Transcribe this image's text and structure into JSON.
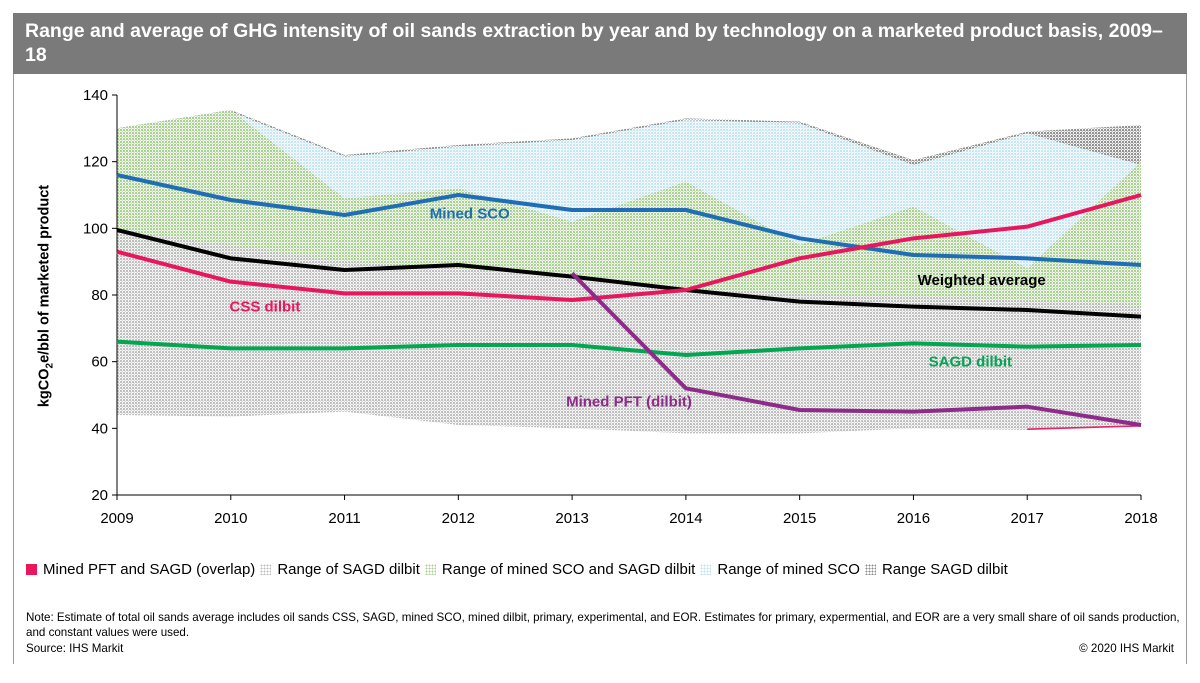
{
  "header": {
    "title": "Range and average of GHG intensity of oil sands extraction by year and by technology on a marketed product basis, 2009–18"
  },
  "colors": {
    "header_bg": "#7a7a7a",
    "mined_sco": "#1f6db5",
    "weighted_average": "#000000",
    "css_dilbit": "#e8175d",
    "sagd_dilbit": "#00a650",
    "mined_pft": "#8e2a8a",
    "range_sagd": "#bdbdbd",
    "range_mined_sco_sagd": "#a9d18e",
    "range_mined_sco": "#bfe3f0",
    "range_sagd_dark": "#8c8c8c",
    "overlap": "#e8175d"
  },
  "chart_data": {
    "type": "line",
    "x": [
      2009,
      2010,
      2011,
      2012,
      2013,
      2014,
      2015,
      2016,
      2017,
      2018
    ],
    "xlim": [
      2009,
      2018
    ],
    "ylim": [
      20,
      140
    ],
    "yticks": [
      20,
      40,
      60,
      80,
      100,
      120,
      140
    ],
    "ylabel_prefix": "kgCO",
    "ylabel_sub": "2",
    "ylabel_suffix": "e/bbl of marketed product",
    "grid": false,
    "series": [
      {
        "name": "Mined SCO",
        "color_key": "mined_sco",
        "values": [
          116,
          108.5,
          104,
          110,
          105.5,
          105.5,
          97,
          92,
          91,
          89
        ]
      },
      {
        "name": "Weighted average",
        "color_key": "weighted_average",
        "values": [
          99.5,
          91,
          87.5,
          89,
          85.5,
          81.5,
          78,
          76.5,
          75.5,
          73.5
        ]
      },
      {
        "name": "CSS dilbit",
        "color_key": "css_dilbit",
        "values": [
          93,
          84,
          80.5,
          80.5,
          78.5,
          81.5,
          91,
          97,
          100.5,
          110
        ]
      },
      {
        "name": "SAGD dilbit",
        "color_key": "sagd_dilbit",
        "values": [
          66,
          64,
          64,
          65,
          65,
          62,
          64,
          65.5,
          64.5,
          65
        ]
      },
      {
        "name": "Mined PFT (dilbit)",
        "color_key": "mined_pft",
        "values": [
          null,
          null,
          null,
          null,
          86.5,
          52,
          45.5,
          45,
          46.5,
          41
        ]
      }
    ],
    "ranges": [
      {
        "name": "Range of SAGD dilbit",
        "color_key": "range_sagd",
        "low": [
          44,
          43.5,
          45,
          41,
          40,
          38.5,
          38.5,
          40,
          39.5,
          41
        ],
        "high": [
          99.5,
          95,
          90,
          88,
          85,
          82,
          80.5,
          79.5,
          78.5,
          77
        ]
      },
      {
        "name": "Range of mined SCO and SAGD dilbit",
        "color_key": "range_mined_sco_sagd",
        "low": [
          93,
          90,
          87,
          88,
          85,
          80,
          78,
          77,
          76,
          74
        ],
        "high": [
          130,
          135.5,
          109,
          112,
          102,
          114,
          95,
          106.5,
          88,
          120
        ]
      },
      {
        "name": "Range of mined SCO",
        "color_key": "range_mined_sco",
        "low": [
          93,
          90,
          87,
          88,
          85,
          80,
          78,
          77,
          76,
          74
        ],
        "high": [
          130,
          135.5,
          122,
          125,
          127,
          133,
          132,
          119.5,
          129,
          119
        ]
      },
      {
        "name": "Range SAGD dilbit",
        "color_key": "range_sagd_dark",
        "low": [
          129.5,
          135,
          121.5,
          124.5,
          126.5,
          132.5,
          131.5,
          119,
          128.5,
          119
        ],
        "high": [
          130,
          135.5,
          122,
          125,
          127,
          133,
          132,
          120.5,
          129,
          131
        ]
      },
      {
        "name": "Mined PFT and SAGD (overlap)",
        "color_key": "overlap",
        "low": [
          null,
          null,
          null,
          null,
          null,
          null,
          null,
          null,
          39.5,
          40.5
        ],
        "high": [
          null,
          null,
          null,
          null,
          null,
          null,
          null,
          null,
          40,
          41
        ]
      }
    ],
    "annotations": [
      {
        "text": "Mined SCO",
        "color_key": "mined_sco",
        "x": 2012.1,
        "y": 103
      },
      {
        "text": "Weighted average",
        "color_key": "weighted_average",
        "x": 2016.6,
        "y": 83
      },
      {
        "text": "CSS dilbit",
        "color_key": "css_dilbit",
        "x": 2010.3,
        "y": 75
      },
      {
        "text": "SAGD dilbit",
        "color_key": "sagd_dilbit",
        "x": 2016.5,
        "y": 58.5
      },
      {
        "text": "Mined PFT (dilbit)",
        "color_key": "mined_pft",
        "x": 2013.5,
        "y": 46.5
      }
    ],
    "legend": [
      {
        "label": "Mined PFT and SAGD (overlap)",
        "color_key": "overlap",
        "pattern": "solid"
      },
      {
        "label": "Range of SAGD dilbit",
        "color_key": "range_sagd",
        "pattern": "dots"
      },
      {
        "label": "Range of mined SCO and SAGD dilbit",
        "color_key": "range_mined_sco_sagd",
        "pattern": "dots"
      },
      {
        "label": "Range of mined SCO",
        "color_key": "range_mined_sco",
        "pattern": "dots"
      },
      {
        "label": "Range SAGD dilbit",
        "color_key": "range_sagd_dark",
        "pattern": "dots"
      }
    ],
    "legend_position": "bottom"
  },
  "footer": {
    "note": "Note: Estimate of total oil sands average includes oil sands CSS, SAGD, mined SCO, mined dilbit, primary, experimental, and EOR. Estimates for primary, expermential, and EOR are a very small share of oil sands production, and constant values were used.",
    "source": "Source: IHS Markit",
    "copyright": "© 2020 IHS Markit"
  }
}
